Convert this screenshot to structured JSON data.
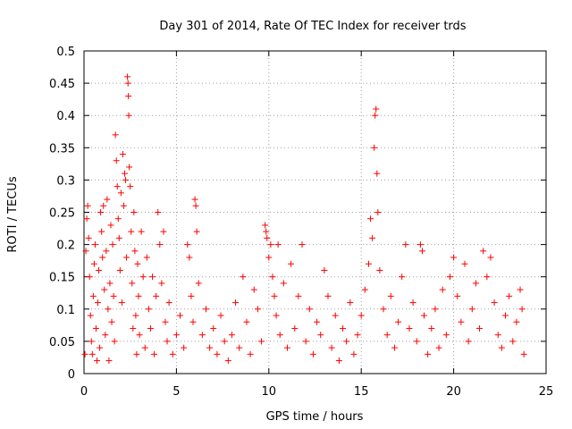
{
  "chart_data": {
    "type": "scatter",
    "title": "Day 301 of 2014, Rate Of TEC Index for receiver trds",
    "xlabel": "GPS time / hours",
    "ylabel": "ROTI / TECUs",
    "xlim": [
      0,
      25
    ],
    "ylim": [
      0,
      0.5
    ],
    "x_ticks": [
      0,
      5,
      10,
      15,
      20,
      25
    ],
    "x_tick_labels": [
      "0",
      "5",
      "10",
      "15",
      "20",
      "25"
    ],
    "y_ticks": [
      0,
      0.05,
      0.1,
      0.15,
      0.2,
      0.25,
      0.3,
      0.35,
      0.4,
      0.45,
      0.5
    ],
    "y_tick_labels": [
      "0",
      "0.05",
      "0.1",
      "0.15",
      "0.2",
      "0.25",
      "0.3",
      "0.35",
      "0.4",
      "0.45",
      "0.5"
    ],
    "grid": true,
    "marker": "+",
    "color": "#ff0000",
    "series": [
      {
        "name": "ROTI",
        "points": [
          [
            0.05,
            0.03
          ],
          [
            0.1,
            0.19
          ],
          [
            0.15,
            0.24
          ],
          [
            0.2,
            0.26
          ],
          [
            0.25,
            0.21
          ],
          [
            0.3,
            0.15
          ],
          [
            0.35,
            0.09
          ],
          [
            0.4,
            0.05
          ],
          [
            0.45,
            0.03
          ],
          [
            0.5,
            0.12
          ],
          [
            0.55,
            0.17
          ],
          [
            0.6,
            0.2
          ],
          [
            0.65,
            0.07
          ],
          [
            0.7,
            0.02
          ],
          [
            0.75,
            0.11
          ],
          [
            0.8,
            0.16
          ],
          [
            0.85,
            0.04
          ],
          [
            0.9,
            0.25
          ],
          [
            0.95,
            0.22
          ],
          [
            1.0,
            0.18
          ],
          [
            1.05,
            0.26
          ],
          [
            1.1,
            0.13
          ],
          [
            1.15,
            0.06
          ],
          [
            1.2,
            0.19
          ],
          [
            1.25,
            0.27
          ],
          [
            1.3,
            0.1
          ],
          [
            1.35,
            0.02
          ],
          [
            1.4,
            0.14
          ],
          [
            1.45,
            0.23
          ],
          [
            1.5,
            0.08
          ],
          [
            1.55,
            0.2
          ],
          [
            1.6,
            0.12
          ],
          [
            1.65,
            0.05
          ],
          [
            1.7,
            0.37
          ],
          [
            1.75,
            0.33
          ],
          [
            1.8,
            0.29
          ],
          [
            1.85,
            0.24
          ],
          [
            1.9,
            0.21
          ],
          [
            1.95,
            0.16
          ],
          [
            2.0,
            0.28
          ],
          [
            2.05,
            0.11
          ],
          [
            2.1,
            0.34
          ],
          [
            2.15,
            0.26
          ],
          [
            2.2,
            0.31
          ],
          [
            2.25,
            0.3
          ],
          [
            2.3,
            0.18
          ],
          [
            2.35,
            0.46
          ],
          [
            2.38,
            0.45
          ],
          [
            2.4,
            0.43
          ],
          [
            2.42,
            0.4
          ],
          [
            2.45,
            0.32
          ],
          [
            2.5,
            0.29
          ],
          [
            2.55,
            0.22
          ],
          [
            2.6,
            0.14
          ],
          [
            2.65,
            0.07
          ],
          [
            2.7,
            0.25
          ],
          [
            2.75,
            0.19
          ],
          [
            2.8,
            0.09
          ],
          [
            2.85,
            0.03
          ],
          [
            2.9,
            0.17
          ],
          [
            2.95,
            0.12
          ],
          [
            3.0,
            0.06
          ],
          [
            3.1,
            0.22
          ],
          [
            3.2,
            0.15
          ],
          [
            3.3,
            0.04
          ],
          [
            3.4,
            0.18
          ],
          [
            3.5,
            0.1
          ],
          [
            3.6,
            0.07
          ],
          [
            3.7,
            0.15
          ],
          [
            3.8,
            0.03
          ],
          [
            3.9,
            0.12
          ],
          [
            4.0,
            0.25
          ],
          [
            4.1,
            0.2
          ],
          [
            4.2,
            0.14
          ],
          [
            4.3,
            0.22
          ],
          [
            4.4,
            0.08
          ],
          [
            4.5,
            0.05
          ],
          [
            4.6,
            0.11
          ],
          [
            4.8,
            0.03
          ],
          [
            5.0,
            0.06
          ],
          [
            5.2,
            0.09
          ],
          [
            5.4,
            0.04
          ],
          [
            5.6,
            0.2
          ],
          [
            5.7,
            0.18
          ],
          [
            5.8,
            0.12
          ],
          [
            5.9,
            0.08
          ],
          [
            6.0,
            0.27
          ],
          [
            6.05,
            0.26
          ],
          [
            6.1,
            0.22
          ],
          [
            6.2,
            0.14
          ],
          [
            6.4,
            0.06
          ],
          [
            6.6,
            0.1
          ],
          [
            6.8,
            0.04
          ],
          [
            7.0,
            0.07
          ],
          [
            7.2,
            0.03
          ],
          [
            7.4,
            0.09
          ],
          [
            7.6,
            0.05
          ],
          [
            7.8,
            0.02
          ],
          [
            8.0,
            0.06
          ],
          [
            8.2,
            0.11
          ],
          [
            8.4,
            0.04
          ],
          [
            8.6,
            0.15
          ],
          [
            8.8,
            0.08
          ],
          [
            9.0,
            0.03
          ],
          [
            9.2,
            0.13
          ],
          [
            9.4,
            0.1
          ],
          [
            9.6,
            0.05
          ],
          [
            9.8,
            0.23
          ],
          [
            9.85,
            0.22
          ],
          [
            9.9,
            0.21
          ],
          [
            10.0,
            0.18
          ],
          [
            10.1,
            0.2
          ],
          [
            10.2,
            0.15
          ],
          [
            10.3,
            0.12
          ],
          [
            10.4,
            0.09
          ],
          [
            10.5,
            0.2
          ],
          [
            10.6,
            0.06
          ],
          [
            10.8,
            0.14
          ],
          [
            11.0,
            0.04
          ],
          [
            11.2,
            0.17
          ],
          [
            11.4,
            0.07
          ],
          [
            11.6,
            0.12
          ],
          [
            11.8,
            0.2
          ],
          [
            12.0,
            0.05
          ],
          [
            12.2,
            0.1
          ],
          [
            12.4,
            0.03
          ],
          [
            12.6,
            0.08
          ],
          [
            12.8,
            0.06
          ],
          [
            13.0,
            0.16
          ],
          [
            13.2,
            0.12
          ],
          [
            13.4,
            0.04
          ],
          [
            13.6,
            0.09
          ],
          [
            13.8,
            0.02
          ],
          [
            14.0,
            0.07
          ],
          [
            14.2,
            0.05
          ],
          [
            14.4,
            0.11
          ],
          [
            14.6,
            0.03
          ],
          [
            14.8,
            0.06
          ],
          [
            15.0,
            0.09
          ],
          [
            15.2,
            0.13
          ],
          [
            15.4,
            0.17
          ],
          [
            15.5,
            0.24
          ],
          [
            15.6,
            0.21
          ],
          [
            15.7,
            0.35
          ],
          [
            15.75,
            0.4
          ],
          [
            15.8,
            0.41
          ],
          [
            15.85,
            0.31
          ],
          [
            15.9,
            0.25
          ],
          [
            16.0,
            0.16
          ],
          [
            16.2,
            0.1
          ],
          [
            16.4,
            0.06
          ],
          [
            16.6,
            0.12
          ],
          [
            16.8,
            0.04
          ],
          [
            17.0,
            0.08
          ],
          [
            17.2,
            0.15
          ],
          [
            17.4,
            0.2
          ],
          [
            17.6,
            0.07
          ],
          [
            17.8,
            0.11
          ],
          [
            18.0,
            0.05
          ],
          [
            18.2,
            0.2
          ],
          [
            18.3,
            0.19
          ],
          [
            18.4,
            0.09
          ],
          [
            18.6,
            0.03
          ],
          [
            18.8,
            0.07
          ],
          [
            19.0,
            0.1
          ],
          [
            19.2,
            0.04
          ],
          [
            19.4,
            0.13
          ],
          [
            19.6,
            0.06
          ],
          [
            19.8,
            0.15
          ],
          [
            20.0,
            0.18
          ],
          [
            20.2,
            0.12
          ],
          [
            20.4,
            0.08
          ],
          [
            20.6,
            0.17
          ],
          [
            20.8,
            0.05
          ],
          [
            21.0,
            0.1
          ],
          [
            21.2,
            0.14
          ],
          [
            21.4,
            0.07
          ],
          [
            21.6,
            0.19
          ],
          [
            21.8,
            0.15
          ],
          [
            22.0,
            0.18
          ],
          [
            22.2,
            0.11
          ],
          [
            22.4,
            0.06
          ],
          [
            22.6,
            0.04
          ],
          [
            22.8,
            0.09
          ],
          [
            23.0,
            0.12
          ],
          [
            23.2,
            0.05
          ],
          [
            23.4,
            0.08
          ],
          [
            23.6,
            0.13
          ],
          [
            23.7,
            0.1
          ],
          [
            23.8,
            0.03
          ]
        ]
      }
    ]
  }
}
